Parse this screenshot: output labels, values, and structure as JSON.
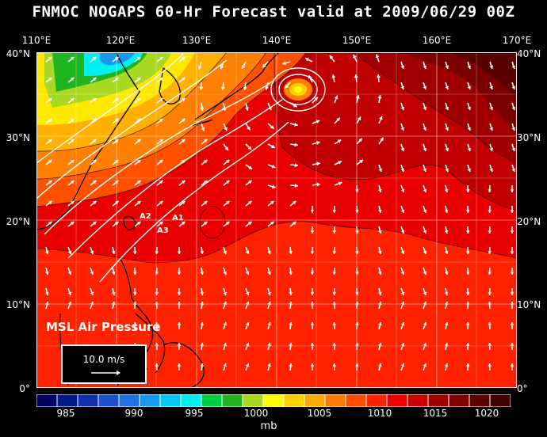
{
  "title": "FNMOC NOGAPS 60-Hr Forecast valid at 2009/06/29 00Z",
  "map": {
    "lon_labels": [
      "110°E",
      "120°E",
      "130°E",
      "140°E",
      "150°E",
      "160°E",
      "170°E"
    ],
    "lat_labels": [
      "40°N",
      "30°N",
      "20°N",
      "10°N",
      "0°"
    ],
    "field_label": "MSL Air Pressure",
    "station_labels": [
      {
        "id": "A1",
        "text": "A1"
      },
      {
        "id": "A2",
        "text": "A2"
      },
      {
        "id": "A3",
        "text": "A3"
      }
    ],
    "vector_scale": {
      "label": "10.0 m/s"
    }
  },
  "colorbar": {
    "tick_labels": [
      "985",
      "990",
      "995",
      "1000",
      "1005",
      "1010",
      "1015",
      "1020"
    ],
    "unit": "mb",
    "colors": [
      "#000066",
      "#001a8c",
      "#1030b0",
      "#1c50d0",
      "#2070e6",
      "#1898ee",
      "#00c8f0",
      "#00f0f0",
      "#00d040",
      "#20b420",
      "#a8d820",
      "#ffff00",
      "#ffd000",
      "#ffa800",
      "#ff7c00",
      "#ff4c00",
      "#ff2400",
      "#f00000",
      "#cc0000",
      "#a00000",
      "#800000",
      "#600000",
      "#400000"
    ]
  }
}
